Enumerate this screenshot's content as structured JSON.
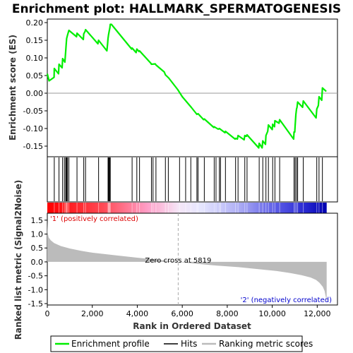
{
  "chart_data": {
    "type": "line",
    "title": "Enrichment plot: HALLMARK_SPERMATOGENESIS",
    "top_panel": {
      "ylabel": "Enrichment score (ES)",
      "ylim": [
        -0.18,
        0.21
      ],
      "yticks": [
        -0.15,
        -0.1,
        -0.05,
        0.0,
        0.05,
        0.1,
        0.15,
        0.2
      ],
      "ytick_labels": [
        "-0.15",
        "-0.10",
        "-0.05",
        "0.00",
        "0.05",
        "0.10",
        "0.15",
        "0.20"
      ],
      "series_name": "Enrichment profile",
      "color": "#00ee00",
      "x": [
        0,
        80,
        300,
        310,
        500,
        520,
        660,
        680,
        780,
        820,
        840,
        860,
        900,
        960,
        1300,
        1320,
        1600,
        1620,
        1680,
        1700,
        2250,
        2280,
        2650,
        2680,
        2700,
        2720,
        2750,
        2780,
        2800,
        2850,
        3750,
        3770,
        3950,
        3980,
        4080,
        4100,
        4600,
        4630,
        4800,
        4830,
        5200,
        5250,
        5400,
        5800,
        6000,
        6400,
        6650,
        6700,
        6950,
        6980,
        7400,
        7420,
        7600,
        7650,
        7900,
        7920,
        8350,
        8370,
        8450,
        8480,
        8750,
        8780,
        8850,
        8880,
        9400,
        9420,
        9550,
        9580,
        9700,
        9720,
        9800,
        9830,
        10000,
        10020,
        10100,
        10120,
        10300,
        10330,
        10950,
        10970,
        11000,
        11020,
        11050,
        11080,
        11100,
        11130,
        11350,
        11380,
        11950,
        11980,
        12050,
        12080,
        12200,
        12230,
        12400
      ],
      "y": [
        0.055,
        0.035,
        0.045,
        0.07,
        0.055,
        0.082,
        0.072,
        0.098,
        0.088,
        0.12,
        0.14,
        0.155,
        0.165,
        0.178,
        0.16,
        0.17,
        0.152,
        0.168,
        0.175,
        0.18,
        0.14,
        0.15,
        0.12,
        0.14,
        0.155,
        0.165,
        0.175,
        0.185,
        0.195,
        0.195,
        0.125,
        0.128,
        0.115,
        0.125,
        0.118,
        0.12,
        0.085,
        0.082,
        0.083,
        0.08,
        0.06,
        0.052,
        0.043,
        0.01,
        -0.01,
        -0.04,
        -0.06,
        -0.058,
        -0.075,
        -0.073,
        -0.097,
        -0.095,
        -0.102,
        -0.1,
        -0.112,
        -0.108,
        -0.13,
        -0.128,
        -0.13,
        -0.12,
        -0.132,
        -0.12,
        -0.122,
        -0.118,
        -0.155,
        -0.142,
        -0.155,
        -0.135,
        -0.145,
        -0.12,
        -0.108,
        -0.09,
        -0.103,
        -0.088,
        -0.095,
        -0.078,
        -0.085,
        -0.075,
        -0.13,
        -0.11,
        -0.11,
        -0.09,
        -0.06,
        -0.045,
        -0.04,
        -0.025,
        -0.04,
        -0.022,
        -0.07,
        -0.045,
        -0.035,
        -0.01,
        -0.02,
        0.015,
        0.005
      ]
    },
    "hits_panel": {
      "series_name": "Hits",
      "positions": [
        310,
        520,
        680,
        760,
        820,
        840,
        870,
        900,
        960,
        1320,
        1620,
        1700,
        2280,
        2700,
        2720,
        2750,
        2780,
        2800,
        3770,
        3980,
        4100,
        4630,
        4700,
        4830,
        5250,
        5380,
        5880,
        6150,
        6380,
        6650,
        6700,
        6980,
        7420,
        7500,
        7650,
        7700,
        7920,
        8370,
        8480,
        8780,
        8880,
        9420,
        9580,
        9720,
        9830,
        10020,
        10120,
        10330,
        10970,
        11020,
        11080,
        11130,
        11380,
        11980,
        12080,
        12230
      ]
    },
    "ranked_panel": {
      "series_name": "Ranking metric scores",
      "ylabel": "Ranked list metric (Signal2Noise)",
      "ylim": [
        -1.55,
        1.75
      ],
      "yticks": [
        -1.5,
        -1.0,
        -0.5,
        0.0,
        0.5,
        1.0,
        1.5
      ],
      "ytick_labels": [
        "-1.5",
        "-1.0",
        "-0.5",
        "0.0",
        "0.5",
        "1.0",
        "1.5"
      ],
      "x": [
        0,
        20,
        60,
        150,
        300,
        600,
        1000,
        1500,
        2000,
        3000,
        4000,
        5000,
        5819,
        6500,
        7500,
        8500,
        9500,
        10200,
        10800,
        11300,
        11700,
        11950,
        12100,
        12250,
        12330,
        12380,
        12420
      ],
      "y": [
        1.45,
        1.05,
        0.88,
        0.78,
        0.68,
        0.57,
        0.48,
        0.4,
        0.33,
        0.24,
        0.15,
        0.07,
        0.0,
        -0.06,
        -0.13,
        -0.19,
        -0.27,
        -0.33,
        -0.4,
        -0.48,
        -0.56,
        -0.65,
        -0.75,
        -0.9,
        -1.05,
        -1.25,
        -1.45
      ],
      "zero_cross_label": "Zero cross at 5819",
      "zero_cross": 5819,
      "pos_label": "'1' (positively correlated)",
      "neg_label": "'2' (negatively correlated)"
    },
    "xlabel": "Rank in Ordered Dataset",
    "xlim": [
      0,
      12900
    ],
    "xticks": [
      0,
      2000,
      4000,
      6000,
      8000,
      10000,
      12000
    ],
    "xtick_labels": [
      "0",
      "2,000",
      "4,000",
      "6,000",
      "8,000",
      "10,000",
      "12,000"
    ],
    "n_genes": 12420,
    "legend": {
      "placement": "bottom",
      "items": [
        {
          "label": "Enrichment profile",
          "color": "#00ee00"
        },
        {
          "label": "Hits",
          "color": "#000000"
        },
        {
          "label": "Ranking metric scores",
          "color": "#bbbbbb"
        }
      ]
    }
  }
}
